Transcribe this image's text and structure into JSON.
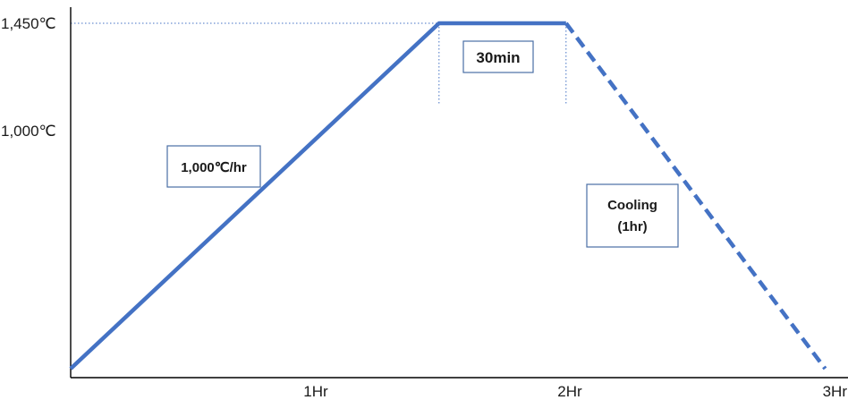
{
  "chart_data": {
    "type": "line",
    "title": "",
    "xlabel": "",
    "ylabel": "",
    "xlim": [
      0,
      3
    ],
    "ylim": [
      0,
      1450
    ],
    "x_ticks": [
      {
        "value": 1,
        "label": "1Hr"
      },
      {
        "value": 2,
        "label": "2Hr"
      },
      {
        "value": 3,
        "label": "3Hr"
      }
    ],
    "y_ticks": [
      {
        "value": 1000,
        "label": "1,000℃"
      },
      {
        "value": 1450,
        "label": "1,450℃"
      }
    ],
    "series": [
      {
        "style": "solid",
        "x": [
          0,
          1.45,
          1.95
        ],
        "y": [
          0,
          1450,
          1450
        ]
      },
      {
        "style": "dashed",
        "x": [
          1.95,
          2.97
        ],
        "y": [
          1450,
          0
        ]
      }
    ],
    "annotations": [
      {
        "id": "ramp",
        "text": "1,000℃/hr"
      },
      {
        "id": "hold",
        "text": "30min"
      },
      {
        "id": "cool",
        "lines": [
          "Cooling",
          "(1hr)"
        ]
      }
    ],
    "colors": {
      "line": "#4472c4",
      "box_border": "#4a6fa5",
      "axis": "#000000"
    }
  }
}
